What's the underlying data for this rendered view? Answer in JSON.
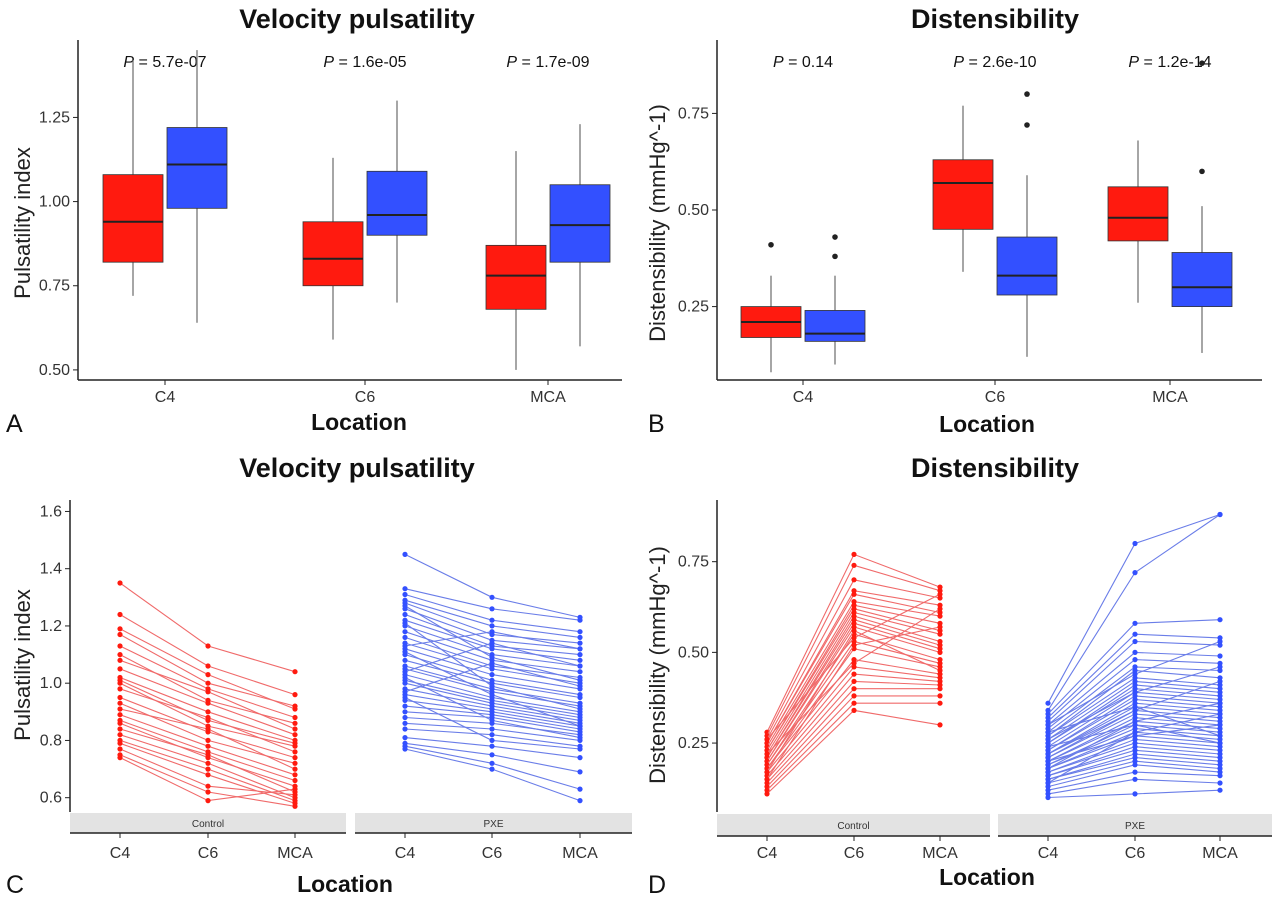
{
  "colors": {
    "control": "#ff1a0f",
    "pxe": "#3350ff",
    "control_line": "#f06a6a",
    "pxe_line": "#6a7de8",
    "strip": "#e3e3e3"
  },
  "panels": [
    {
      "letter": "A",
      "title": "Velocity pulsatility",
      "xlabel": "Location",
      "ylabel": "Pulsatility index"
    },
    {
      "letter": "B",
      "title": "Distensibility",
      "xlabel": "Location",
      "ylabel": "Distensibility (mmHg^-1)"
    },
    {
      "letter": "C",
      "title": "Velocity pulsatility",
      "xlabel": "Location",
      "ylabel": "Pulsatility index"
    },
    {
      "letter": "D",
      "title": "Distensibility",
      "xlabel": "Location",
      "ylabel": "Distensibility (mmHg^-1)"
    }
  ],
  "chart_data": [
    {
      "type": "box",
      "title": "Velocity pulsatility",
      "xlabel": "Location",
      "ylabel": "Pulsatility index",
      "categories": [
        "C4",
        "C6",
        "MCA"
      ],
      "yticks": [
        "0.50",
        "0.75",
        "1.00",
        "1.25"
      ],
      "ylim": [
        0.47,
        1.48
      ],
      "p_values": [
        {
          "prefix": "P",
          "text": " = 5.7e-07"
        },
        {
          "prefix": "P",
          "text": " = 1.6e-05"
        },
        {
          "prefix": "P",
          "text": " = 1.7e-09"
        }
      ],
      "series": [
        {
          "group": "control",
          "boxes": [
            {
              "min": 0.72,
              "q1": 0.82,
              "median": 0.94,
              "q3": 1.08,
              "max": 1.42,
              "outliers": []
            },
            {
              "min": 0.59,
              "q1": 0.75,
              "median": 0.83,
              "q3": 0.94,
              "max": 1.13,
              "outliers": []
            },
            {
              "min": 0.5,
              "q1": 0.68,
              "median": 0.78,
              "q3": 0.87,
              "max": 1.15,
              "outliers": []
            }
          ]
        },
        {
          "group": "pxe",
          "boxes": [
            {
              "min": 0.64,
              "q1": 0.98,
              "median": 1.11,
              "q3": 1.22,
              "max": 1.45,
              "outliers": []
            },
            {
              "min": 0.7,
              "q1": 0.9,
              "median": 0.96,
              "q3": 1.09,
              "max": 1.3,
              "outliers": []
            },
            {
              "min": 0.57,
              "q1": 0.82,
              "median": 0.93,
              "q3": 1.05,
              "max": 1.23,
              "outliers": []
            }
          ]
        }
      ]
    },
    {
      "type": "box",
      "title": "Distensibility",
      "xlabel": "Location",
      "ylabel": "Distensibility (mmHg^-1)",
      "categories": [
        "C4",
        "C6",
        "MCA"
      ],
      "yticks": [
        "0.25",
        "0.50",
        "0.75"
      ],
      "ylim": [
        0.06,
        0.94
      ],
      "p_values": [
        {
          "prefix": "P",
          "text": " = 0.14"
        },
        {
          "prefix": "P",
          "text": " = 2.6e-10"
        },
        {
          "prefix": "P",
          "text": " = 1.2e-14"
        }
      ],
      "series": [
        {
          "group": "control",
          "boxes": [
            {
              "min": 0.08,
              "q1": 0.17,
              "median": 0.21,
              "q3": 0.25,
              "max": 0.33,
              "outliers": [
                0.41
              ]
            },
            {
              "min": 0.34,
              "q1": 0.45,
              "median": 0.57,
              "q3": 0.63,
              "max": 0.77,
              "outliers": []
            },
            {
              "min": 0.26,
              "q1": 0.42,
              "median": 0.48,
              "q3": 0.56,
              "max": 0.68,
              "outliers": []
            }
          ]
        },
        {
          "group": "pxe",
          "boxes": [
            {
              "min": 0.1,
              "q1": 0.16,
              "median": 0.18,
              "q3": 0.24,
              "max": 0.33,
              "outliers": [
                0.38,
                0.43
              ]
            },
            {
              "min": 0.12,
              "q1": 0.28,
              "median": 0.33,
              "q3": 0.43,
              "max": 0.59,
              "outliers": [
                0.72,
                0.8
              ]
            },
            {
              "min": 0.13,
              "q1": 0.25,
              "median": 0.3,
              "q3": 0.39,
              "max": 0.51,
              "outliers": [
                0.6,
                0.88
              ]
            }
          ]
        }
      ]
    },
    {
      "type": "line",
      "title": "Velocity pulsatility",
      "xlabel": "Location",
      "ylabel": "Pulsatility index",
      "categories": [
        "C4",
        "C6",
        "MCA"
      ],
      "yticks": [
        "0.6",
        "0.8",
        "1.0",
        "1.2",
        "1.4",
        "1.6"
      ],
      "ylim": [
        0.55,
        1.64
      ],
      "facets": [
        "Control",
        "PXE"
      ],
      "series": [
        {
          "group": "Control",
          "points": [
            [
              1.35,
              1.13,
              1.04
            ],
            [
              1.24,
              1.06,
              0.96
            ],
            [
              1.19,
              1.03,
              0.91
            ],
            [
              1.17,
              1.0,
              0.92
            ],
            [
              1.13,
              0.98,
              0.88
            ],
            [
              1.1,
              0.94,
              0.86
            ],
            [
              1.08,
              0.97,
              0.84
            ],
            [
              1.05,
              0.93,
              0.82
            ],
            [
              1.02,
              0.9,
              0.8
            ],
            [
              1.01,
              0.87,
              0.79
            ],
            [
              1.0,
              0.85,
              0.78
            ],
            [
              0.98,
              0.88,
              0.76
            ],
            [
              0.95,
              0.83,
              0.74
            ],
            [
              0.93,
              0.8,
              0.72
            ],
            [
              0.91,
              0.84,
              0.7
            ],
            [
              0.89,
              0.78,
              0.68
            ],
            [
              0.87,
              0.76,
              0.66
            ],
            [
              0.86,
              0.74,
              0.64
            ],
            [
              0.84,
              0.75,
              0.62
            ],
            [
              0.82,
              0.72,
              0.6
            ],
            [
              0.8,
              0.7,
              0.59
            ],
            [
              0.79,
              0.68,
              0.58
            ],
            [
              0.77,
              0.64,
              0.61
            ],
            [
              0.75,
              0.62,
              0.57
            ],
            [
              0.74,
              0.59,
              0.63
            ]
          ]
        },
        {
          "group": "PXE",
          "points": [
            [
              1.45,
              1.3,
              1.23
            ],
            [
              1.33,
              1.26,
              1.22
            ],
            [
              1.31,
              1.22,
              1.18
            ],
            [
              1.29,
              1.2,
              1.16
            ],
            [
              1.28,
              1.17,
              1.14
            ],
            [
              1.26,
              1.15,
              1.12
            ],
            [
              1.24,
              1.13,
              1.1
            ],
            [
              1.22,
              1.12,
              1.08
            ],
            [
              1.2,
              1.1,
              1.06
            ],
            [
              1.18,
              1.08,
              1.04
            ],
            [
              1.16,
              1.06,
              1.02
            ],
            [
              1.14,
              1.05,
              1.0
            ],
            [
              1.12,
              1.03,
              0.98
            ],
            [
              1.1,
              1.01,
              0.96
            ],
            [
              1.08,
              1.0,
              0.95
            ],
            [
              1.06,
              0.98,
              0.93
            ],
            [
              1.05,
              0.97,
              0.92
            ],
            [
              1.03,
              0.95,
              0.9
            ],
            [
              1.01,
              0.94,
              0.89
            ],
            [
              1.0,
              0.93,
              0.88
            ],
            [
              0.98,
              0.92,
              0.87
            ],
            [
              0.96,
              0.91,
              0.86
            ],
            [
              0.94,
              0.9,
              0.85
            ],
            [
              0.92,
              0.89,
              0.84
            ],
            [
              0.9,
              0.88,
              0.83
            ],
            [
              0.88,
              0.86,
              0.82
            ],
            [
              0.86,
              0.84,
              0.8
            ],
            [
              0.84,
              0.82,
              0.78
            ],
            [
              0.81,
              0.78,
              0.74
            ],
            [
              0.79,
              0.75,
              0.69
            ],
            [
              0.78,
              0.72,
              0.63
            ],
            [
              0.77,
              0.7,
              0.59
            ],
            [
              1.27,
              1.09,
              1.01
            ],
            [
              1.21,
              0.99,
              0.91
            ],
            [
              1.11,
              0.96,
              0.85
            ],
            [
              1.02,
              0.87,
              0.81
            ],
            [
              0.95,
              0.8,
              0.77
            ],
            [
              1.13,
              1.18,
              1.12
            ],
            [
              1.04,
              1.14,
              1.06
            ],
            [
              0.97,
              1.07,
              0.99
            ]
          ]
        }
      ]
    },
    {
      "type": "line",
      "title": "Distensibility",
      "xlabel": "Location",
      "ylabel": "Distensibility (mmHg^-1)",
      "categories": [
        "C4",
        "C6",
        "MCA"
      ],
      "yticks": [
        "0.25",
        "0.50",
        "0.75"
      ],
      "ylim": [
        0.06,
        0.92
      ],
      "facets": [
        "Control",
        "PXE"
      ],
      "series": [
        {
          "group": "Control",
          "points": [
            [
              0.28,
              0.77,
              0.68
            ],
            [
              0.27,
              0.74,
              0.67
            ],
            [
              0.26,
              0.7,
              0.65
            ],
            [
              0.25,
              0.67,
              0.63
            ],
            [
              0.25,
              0.66,
              0.61
            ],
            [
              0.24,
              0.64,
              0.6
            ],
            [
              0.23,
              0.63,
              0.58
            ],
            [
              0.23,
              0.62,
              0.56
            ],
            [
              0.22,
              0.61,
              0.55
            ],
            [
              0.21,
              0.6,
              0.53
            ],
            [
              0.21,
              0.59,
              0.52
            ],
            [
              0.2,
              0.58,
              0.51
            ],
            [
              0.2,
              0.57,
              0.5
            ],
            [
              0.19,
              0.55,
              0.48
            ],
            [
              0.19,
              0.53,
              0.47
            ],
            [
              0.18,
              0.51,
              0.46
            ],
            [
              0.18,
              0.48,
              0.44
            ],
            [
              0.17,
              0.46,
              0.43
            ],
            [
              0.16,
              0.44,
              0.42
            ],
            [
              0.15,
              0.42,
              0.41
            ],
            [
              0.14,
              0.4,
              0.4
            ],
            [
              0.13,
              0.38,
              0.38
            ],
            [
              0.12,
              0.36,
              0.36
            ],
            [
              0.11,
              0.34,
              0.3
            ],
            [
              0.26,
              0.54,
              0.66
            ],
            [
              0.22,
              0.47,
              0.62
            ],
            [
              0.17,
              0.56,
              0.45
            ],
            [
              0.15,
              0.52,
              0.57
            ]
          ]
        },
        {
          "group": "PXE",
          "points": [
            [
              0.36,
              0.8,
              0.88
            ],
            [
              0.34,
              0.72,
              0.88
            ],
            [
              0.33,
              0.58,
              0.59
            ],
            [
              0.32,
              0.55,
              0.54
            ],
            [
              0.31,
              0.53,
              0.52
            ],
            [
              0.3,
              0.5,
              0.49
            ],
            [
              0.29,
              0.48,
              0.47
            ],
            [
              0.28,
              0.46,
              0.45
            ],
            [
              0.27,
              0.45,
              0.43
            ],
            [
              0.27,
              0.43,
              0.41
            ],
            [
              0.26,
              0.42,
              0.4
            ],
            [
              0.25,
              0.41,
              0.39
            ],
            [
              0.25,
              0.4,
              0.38
            ],
            [
              0.24,
              0.39,
              0.37
            ],
            [
              0.23,
              0.38,
              0.36
            ],
            [
              0.23,
              0.37,
              0.35
            ],
            [
              0.22,
              0.36,
              0.34
            ],
            [
              0.22,
              0.35,
              0.33
            ],
            [
              0.21,
              0.34,
              0.32
            ],
            [
              0.21,
              0.33,
              0.31
            ],
            [
              0.2,
              0.32,
              0.3
            ],
            [
              0.2,
              0.31,
              0.29
            ],
            [
              0.19,
              0.3,
              0.28
            ],
            [
              0.19,
              0.29,
              0.27
            ],
            [
              0.18,
              0.28,
              0.26
            ],
            [
              0.18,
              0.27,
              0.25
            ],
            [
              0.17,
              0.26,
              0.24
            ],
            [
              0.17,
              0.25,
              0.23
            ],
            [
              0.16,
              0.24,
              0.22
            ],
            [
              0.16,
              0.23,
              0.21
            ],
            [
              0.15,
              0.22,
              0.2
            ],
            [
              0.15,
              0.21,
              0.19
            ],
            [
              0.14,
              0.2,
              0.18
            ],
            [
              0.13,
              0.19,
              0.17
            ],
            [
              0.12,
              0.17,
              0.16
            ],
            [
              0.11,
              0.15,
              0.14
            ],
            [
              0.1,
              0.11,
              0.12
            ],
            [
              0.3,
              0.44,
              0.53
            ],
            [
              0.26,
              0.39,
              0.46
            ],
            [
              0.22,
              0.34,
              0.42
            ],
            [
              0.18,
              0.31,
              0.36
            ],
            [
              0.14,
              0.28,
              0.33
            ],
            [
              0.28,
              0.35,
              0.27
            ],
            [
              0.24,
              0.3,
              0.25
            ],
            [
              0.2,
              0.27,
              0.3
            ]
          ]
        }
      ]
    }
  ]
}
